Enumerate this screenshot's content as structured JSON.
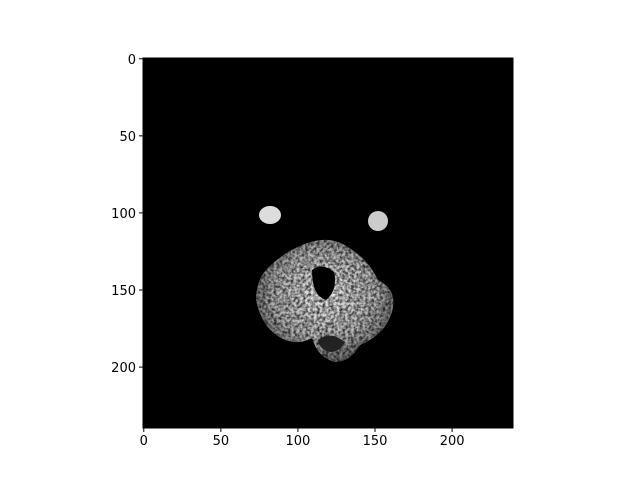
{
  "chart_data": {
    "type": "image",
    "xlim": [
      -0.5,
      239.5
    ],
    "ylim": [
      239.5,
      -0.5
    ],
    "xticks": [
      0,
      50,
      100,
      150,
      200
    ],
    "yticks": [
      0,
      50,
      100,
      150,
      200
    ],
    "background": "#000000"
  }
}
